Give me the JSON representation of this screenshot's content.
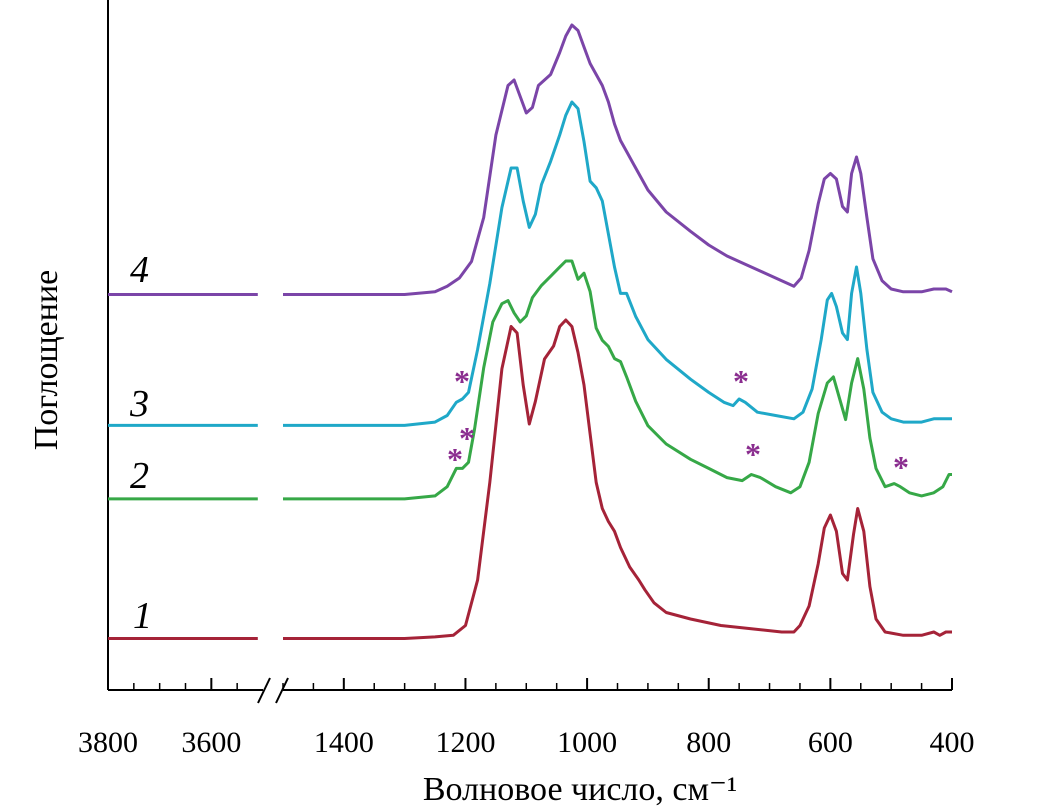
{
  "chart_data": {
    "type": "line",
    "title": "",
    "xlabel": "Волновое число, см⁻¹",
    "ylabel": "Поглощение",
    "x_break": [
      3500,
      1500
    ],
    "x_ticks": [
      3800,
      3600,
      1400,
      1200,
      1000,
      800,
      600,
      400
    ],
    "x_tick_labels": [
      "3800",
      "3600",
      "1400",
      "1200",
      "1000",
      "800",
      "600",
      "400"
    ],
    "x_reversed": true,
    "y_ticks_shown": false,
    "grid": false,
    "legend": "none",
    "series": [
      {
        "name": "1",
        "color": "#A52338",
        "points": [
          [
            3800,
            0.02
          ],
          [
            3700,
            0.02
          ],
          [
            3600,
            0.02
          ],
          [
            3510,
            0.02
          ],
          [
            1500,
            0.02
          ],
          [
            1400,
            0.02
          ],
          [
            1300,
            0.02
          ],
          [
            1250,
            0.025
          ],
          [
            1220,
            0.03
          ],
          [
            1200,
            0.06
          ],
          [
            1180,
            0.2
          ],
          [
            1160,
            0.5
          ],
          [
            1140,
            0.85
          ],
          [
            1125,
            0.98
          ],
          [
            1115,
            0.96
          ],
          [
            1105,
            0.8
          ],
          [
            1095,
            0.68
          ],
          [
            1085,
            0.75
          ],
          [
            1070,
            0.88
          ],
          [
            1055,
            0.92
          ],
          [
            1045,
            0.98
          ],
          [
            1035,
            1.0
          ],
          [
            1025,
            0.98
          ],
          [
            1015,
            0.9
          ],
          [
            1005,
            0.8
          ],
          [
            995,
            0.65
          ],
          [
            985,
            0.5
          ],
          [
            975,
            0.42
          ],
          [
            965,
            0.38
          ],
          [
            955,
            0.35
          ],
          [
            945,
            0.3
          ],
          [
            930,
            0.24
          ],
          [
            915,
            0.2
          ],
          [
            905,
            0.17
          ],
          [
            890,
            0.13
          ],
          [
            870,
            0.1
          ],
          [
            830,
            0.08
          ],
          [
            780,
            0.06
          ],
          [
            730,
            0.05
          ],
          [
            680,
            0.04
          ],
          [
            660,
            0.04
          ],
          [
            650,
            0.06
          ],
          [
            635,
            0.12
          ],
          [
            620,
            0.25
          ],
          [
            610,
            0.36
          ],
          [
            600,
            0.4
          ],
          [
            590,
            0.35
          ],
          [
            580,
            0.22
          ],
          [
            572,
            0.2
          ],
          [
            562,
            0.34
          ],
          [
            555,
            0.42
          ],
          [
            545,
            0.35
          ],
          [
            535,
            0.18
          ],
          [
            525,
            0.08
          ],
          [
            510,
            0.04
          ],
          [
            480,
            0.03
          ],
          [
            450,
            0.03
          ],
          [
            430,
            0.04
          ],
          [
            420,
            0.03
          ],
          [
            410,
            0.04
          ],
          [
            400,
            0.04
          ]
        ]
      },
      {
        "name": "2",
        "color": "#36A847",
        "points": [
          [
            3800,
            0.02
          ],
          [
            3700,
            0.02
          ],
          [
            3600,
            0.02
          ],
          [
            3510,
            0.02
          ],
          [
            1500,
            0.02
          ],
          [
            1400,
            0.02
          ],
          [
            1300,
            0.02
          ],
          [
            1250,
            0.03
          ],
          [
            1230,
            0.06
          ],
          [
            1215,
            0.12
          ],
          [
            1205,
            0.12
          ],
          [
            1195,
            0.14
          ],
          [
            1185,
            0.25
          ],
          [
            1170,
            0.45
          ],
          [
            1155,
            0.6
          ],
          [
            1140,
            0.66
          ],
          [
            1130,
            0.67
          ],
          [
            1120,
            0.63
          ],
          [
            1110,
            0.6
          ],
          [
            1100,
            0.62
          ],
          [
            1090,
            0.68
          ],
          [
            1075,
            0.72
          ],
          [
            1060,
            0.75
          ],
          [
            1045,
            0.78
          ],
          [
            1035,
            0.8
          ],
          [
            1025,
            0.8
          ],
          [
            1015,
            0.74
          ],
          [
            1005,
            0.76
          ],
          [
            995,
            0.7
          ],
          [
            985,
            0.58
          ],
          [
            975,
            0.54
          ],
          [
            965,
            0.52
          ],
          [
            955,
            0.48
          ],
          [
            945,
            0.47
          ],
          [
            935,
            0.42
          ],
          [
            920,
            0.34
          ],
          [
            900,
            0.26
          ],
          [
            870,
            0.2
          ],
          [
            830,
            0.15
          ],
          [
            800,
            0.12
          ],
          [
            770,
            0.09
          ],
          [
            745,
            0.08
          ],
          [
            730,
            0.1
          ],
          [
            715,
            0.09
          ],
          [
            690,
            0.06
          ],
          [
            665,
            0.04
          ],
          [
            650,
            0.06
          ],
          [
            635,
            0.14
          ],
          [
            620,
            0.3
          ],
          [
            605,
            0.4
          ],
          [
            595,
            0.42
          ],
          [
            585,
            0.35
          ],
          [
            575,
            0.28
          ],
          [
            565,
            0.4
          ],
          [
            555,
            0.48
          ],
          [
            545,
            0.38
          ],
          [
            535,
            0.22
          ],
          [
            525,
            0.12
          ],
          [
            510,
            0.06
          ],
          [
            495,
            0.07
          ],
          [
            485,
            0.06
          ],
          [
            470,
            0.04
          ],
          [
            450,
            0.03
          ],
          [
            430,
            0.04
          ],
          [
            415,
            0.06
          ],
          [
            405,
            0.1
          ],
          [
            400,
            0.1
          ]
        ]
      },
      {
        "name": "3",
        "color": "#1FA8C8",
        "points": [
          [
            3800,
            0.02
          ],
          [
            3700,
            0.02
          ],
          [
            3600,
            0.02
          ],
          [
            3510,
            0.02
          ],
          [
            1500,
            0.02
          ],
          [
            1400,
            0.02
          ],
          [
            1300,
            0.02
          ],
          [
            1250,
            0.03
          ],
          [
            1230,
            0.05
          ],
          [
            1215,
            0.09
          ],
          [
            1205,
            0.1
          ],
          [
            1195,
            0.12
          ],
          [
            1180,
            0.25
          ],
          [
            1160,
            0.45
          ],
          [
            1140,
            0.68
          ],
          [
            1125,
            0.8
          ],
          [
            1115,
            0.8
          ],
          [
            1105,
            0.7
          ],
          [
            1095,
            0.62
          ],
          [
            1085,
            0.66
          ],
          [
            1075,
            0.75
          ],
          [
            1060,
            0.82
          ],
          [
            1045,
            0.9
          ],
          [
            1035,
            0.96
          ],
          [
            1025,
            1.0
          ],
          [
            1015,
            0.98
          ],
          [
            1005,
            0.88
          ],
          [
            995,
            0.76
          ],
          [
            985,
            0.74
          ],
          [
            975,
            0.7
          ],
          [
            965,
            0.6
          ],
          [
            955,
            0.5
          ],
          [
            945,
            0.42
          ],
          [
            935,
            0.42
          ],
          [
            920,
            0.35
          ],
          [
            900,
            0.28
          ],
          [
            870,
            0.22
          ],
          [
            830,
            0.16
          ],
          [
            800,
            0.12
          ],
          [
            775,
            0.09
          ],
          [
            760,
            0.08
          ],
          [
            750,
            0.1
          ],
          [
            740,
            0.09
          ],
          [
            720,
            0.06
          ],
          [
            690,
            0.05
          ],
          [
            660,
            0.04
          ],
          [
            645,
            0.06
          ],
          [
            630,
            0.13
          ],
          [
            615,
            0.28
          ],
          [
            605,
            0.4
          ],
          [
            598,
            0.42
          ],
          [
            590,
            0.38
          ],
          [
            580,
            0.3
          ],
          [
            572,
            0.28
          ],
          [
            565,
            0.42
          ],
          [
            557,
            0.5
          ],
          [
            550,
            0.42
          ],
          [
            540,
            0.25
          ],
          [
            530,
            0.12
          ],
          [
            515,
            0.06
          ],
          [
            500,
            0.04
          ],
          [
            480,
            0.03
          ],
          [
            450,
            0.03
          ],
          [
            430,
            0.04
          ],
          [
            410,
            0.04
          ],
          [
            400,
            0.04
          ]
        ]
      },
      {
        "name": "4",
        "color": "#7B45A8",
        "points": [
          [
            3800,
            0.02
          ],
          [
            3700,
            0.02
          ],
          [
            3600,
            0.02
          ],
          [
            3510,
            0.02
          ],
          [
            1500,
            0.02
          ],
          [
            1400,
            0.02
          ],
          [
            1300,
            0.02
          ],
          [
            1250,
            0.03
          ],
          [
            1230,
            0.05
          ],
          [
            1210,
            0.08
          ],
          [
            1190,
            0.14
          ],
          [
            1170,
            0.3
          ],
          [
            1150,
            0.6
          ],
          [
            1130,
            0.78
          ],
          [
            1120,
            0.8
          ],
          [
            1110,
            0.74
          ],
          [
            1100,
            0.68
          ],
          [
            1090,
            0.7
          ],
          [
            1080,
            0.78
          ],
          [
            1070,
            0.8
          ],
          [
            1060,
            0.82
          ],
          [
            1045,
            0.9
          ],
          [
            1035,
            0.96
          ],
          [
            1025,
            1.0
          ],
          [
            1015,
            0.98
          ],
          [
            1005,
            0.92
          ],
          [
            995,
            0.86
          ],
          [
            985,
            0.82
          ],
          [
            975,
            0.78
          ],
          [
            965,
            0.72
          ],
          [
            955,
            0.64
          ],
          [
            945,
            0.58
          ],
          [
            935,
            0.54
          ],
          [
            920,
            0.48
          ],
          [
            900,
            0.4
          ],
          [
            870,
            0.32
          ],
          [
            830,
            0.25
          ],
          [
            800,
            0.2
          ],
          [
            770,
            0.16
          ],
          [
            740,
            0.13
          ],
          [
            710,
            0.1
          ],
          [
            680,
            0.07
          ],
          [
            660,
            0.05
          ],
          [
            648,
            0.08
          ],
          [
            635,
            0.18
          ],
          [
            620,
            0.35
          ],
          [
            610,
            0.44
          ],
          [
            600,
            0.46
          ],
          [
            590,
            0.44
          ],
          [
            580,
            0.34
          ],
          [
            572,
            0.32
          ],
          [
            565,
            0.46
          ],
          [
            557,
            0.52
          ],
          [
            550,
            0.46
          ],
          [
            540,
            0.3
          ],
          [
            530,
            0.15
          ],
          [
            515,
            0.07
          ],
          [
            500,
            0.04
          ],
          [
            480,
            0.03
          ],
          [
            450,
            0.03
          ],
          [
            430,
            0.04
          ],
          [
            410,
            0.04
          ],
          [
            400,
            0.03
          ]
        ]
      }
    ],
    "annotations": [
      {
        "text": "*",
        "note_series": "3",
        "x": 1200
      },
      {
        "text": "*",
        "note_series": "3",
        "x": 760
      },
      {
        "text": "*",
        "note_series": "2",
        "x": 1185
      },
      {
        "text": "*",
        "note_series": "2",
        "x": 1205
      },
      {
        "text": "*",
        "note_series": "2",
        "x": 745
      },
      {
        "text": "*",
        "note_series": "2",
        "x": 485
      }
    ],
    "annotation_color": "#8A2D8F"
  }
}
